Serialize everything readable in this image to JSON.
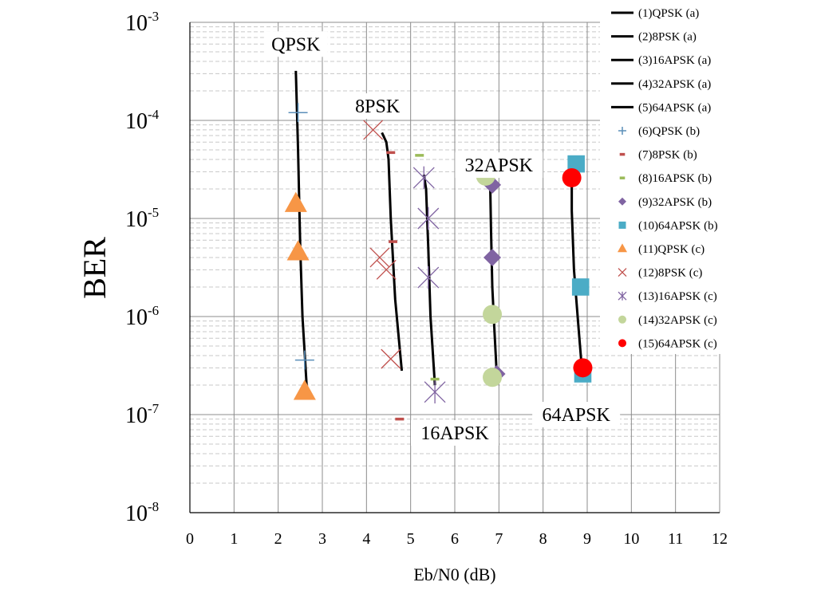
{
  "chart_data": {
    "type": "scatter",
    "title": "",
    "xlabel": "Eb/N0 (dB)",
    "ylabel": "BER",
    "xlim": [
      0,
      12
    ],
    "ylim": [
      1e-08,
      0.001
    ],
    "yscale": "log",
    "xticks": [
      "0",
      "1",
      "2",
      "3",
      "4",
      "5",
      "6",
      "7",
      "8",
      "9",
      "10",
      "11",
      "12"
    ],
    "yticks": [
      {
        "base": "10",
        "exp": "-3"
      },
      {
        "base": "10",
        "exp": "-4"
      },
      {
        "base": "10",
        "exp": "-5"
      },
      {
        "base": "10",
        "exp": "-6"
      },
      {
        "base": "10",
        "exp": "-7"
      },
      {
        "base": "10",
        "exp": "-8"
      }
    ],
    "grid": true,
    "legend_position": "right",
    "annotations": [
      {
        "text": "QPSK",
        "x": 2.4,
        "y": 0.0006
      },
      {
        "text": "8PSK",
        "x": 4.25,
        "y": 0.00014
      },
      {
        "text": "32APSK",
        "x": 7.0,
        "y": 3.5e-05
      },
      {
        "text": "16APSK",
        "x": 6.0,
        "y": 6.5e-08
      },
      {
        "text": "64APSK",
        "x": 8.75,
        "y": 1e-07
      }
    ],
    "series": [
      {
        "name": "(1)QPSK (a)",
        "kind": "line",
        "color": "#000000",
        "points": [
          [
            2.4,
            0.00032
          ],
          [
            2.45,
            5e-05
          ],
          [
            2.5,
            5e-06
          ],
          [
            2.55,
            1e-06
          ],
          [
            2.65,
            1.8e-07
          ]
        ]
      },
      {
        "name": "(2)8PSK (a)",
        "kind": "line",
        "color": "#000000",
        "points": [
          [
            4.35,
            7.5e-05
          ],
          [
            4.45,
            6e-05
          ],
          [
            4.5,
            4e-05
          ],
          [
            4.55,
            1e-05
          ],
          [
            4.65,
            1.5e-06
          ],
          [
            4.8,
            2.8e-07
          ]
        ]
      },
      {
        "name": "(3)16APSK (a)",
        "kind": "line",
        "color": "#000000",
        "points": [
          [
            5.3,
            2.8e-05
          ],
          [
            5.35,
            2e-05
          ],
          [
            5.4,
            5e-06
          ],
          [
            5.45,
            1e-06
          ],
          [
            5.55,
            2e-07
          ]
        ]
      },
      {
        "name": "(4)32APSK (a)",
        "kind": "line",
        "color": "#000000",
        "points": [
          [
            6.8,
            2.6e-05
          ],
          [
            6.82,
            8e-06
          ],
          [
            6.85,
            2e-06
          ],
          [
            6.9,
            7e-07
          ],
          [
            6.95,
            2.6e-07
          ]
        ]
      },
      {
        "name": "(5)64APSK (a)",
        "kind": "line",
        "color": "#000000",
        "points": [
          [
            8.65,
            2.5e-05
          ],
          [
            8.65,
            1.2e-05
          ],
          [
            8.7,
            3e-06
          ],
          [
            8.8,
            8e-07
          ],
          [
            8.88,
            2.9e-07
          ]
        ]
      },
      {
        "name": "(6)QPSK (b)",
        "kind": "marker",
        "marker": "plus",
        "color": "#5b8fb9",
        "points": [
          [
            2.45,
            0.00012
          ],
          [
            2.6,
            3.6e-07
          ]
        ]
      },
      {
        "name": "(7)8PSK (b)",
        "kind": "marker",
        "marker": "dash",
        "color": "#c0504d",
        "points": [
          [
            4.55,
            4.7e-05
          ],
          [
            4.6,
            5.8e-06
          ],
          [
            4.75,
            9e-08
          ]
        ]
      },
      {
        "name": "(8)16APSK (b)",
        "kind": "marker",
        "marker": "dash",
        "color": "#9bbb59",
        "points": [
          [
            5.2,
            4.4e-05
          ],
          [
            5.55,
            2.3e-07
          ]
        ]
      },
      {
        "name": "(9)32APSK (b)",
        "kind": "marker",
        "marker": "diamond",
        "color": "#8064a2",
        "points": [
          [
            6.85,
            2.2e-05
          ],
          [
            6.85,
            4e-06
          ],
          [
            6.95,
            2.6e-07
          ]
        ]
      },
      {
        "name": "(10)64APSK (b)",
        "kind": "marker",
        "marker": "square",
        "color": "#4bacc6",
        "points": [
          [
            8.75,
            3.6e-05
          ],
          [
            8.85,
            2e-06
          ],
          [
            8.9,
            2.6e-07
          ]
        ]
      },
      {
        "name": "(11)QPSK (c)",
        "kind": "marker",
        "marker": "triangle",
        "color": "#f79646",
        "points": [
          [
            2.4,
            1.4e-05
          ],
          [
            2.45,
            4.5e-06
          ],
          [
            2.6,
            1.7e-07
          ]
        ]
      },
      {
        "name": "(12)8PSK (c)",
        "kind": "marker",
        "marker": "x",
        "color": "#c0504d",
        "points": [
          [
            4.15,
            8e-05
          ],
          [
            4.3,
            4e-06
          ],
          [
            4.45,
            3e-06
          ],
          [
            4.55,
            3.7e-07
          ]
        ]
      },
      {
        "name": "(13)16APSK (c)",
        "kind": "marker",
        "marker": "star",
        "color": "#8064a2",
        "points": [
          [
            5.3,
            2.6e-05
          ],
          [
            5.4,
            1e-05
          ],
          [
            5.4,
            2.5e-06
          ],
          [
            5.55,
            1.7e-07
          ]
        ]
      },
      {
        "name": "(14)32APSK (c)",
        "kind": "marker",
        "marker": "circle",
        "color": "#c3d69b",
        "points": [
          [
            6.7,
            2.7e-05
          ],
          [
            6.85,
            1.05e-06
          ],
          [
            6.85,
            2.4e-07
          ]
        ]
      },
      {
        "name": "(15)64APSK (c)",
        "kind": "marker",
        "marker": "circle",
        "color": "#ff0000",
        "points": [
          [
            8.65,
            2.6e-05
          ],
          [
            8.9,
            3e-07
          ]
        ]
      }
    ]
  }
}
